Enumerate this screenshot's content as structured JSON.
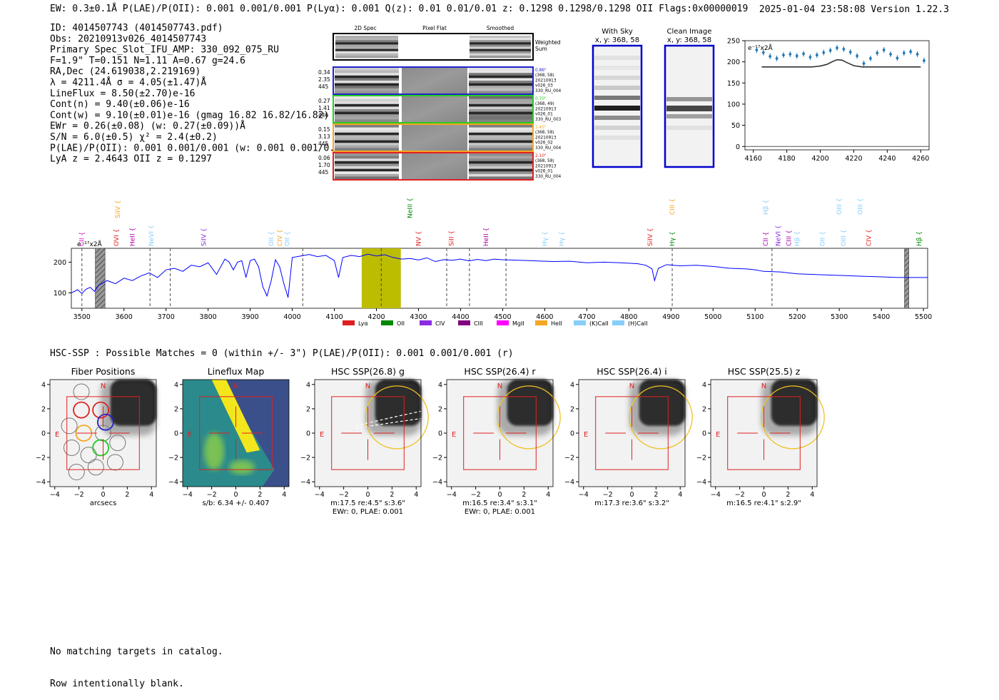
{
  "header": {
    "left_line": "EW: 0.3±0.1Å   P(LAE)/P(OII): 0.001 0.001/0.001   P(Lyα): 0.001   Q(z): 0.01 0.01/0.01   z: 0.1298 0.1298/0.1298  OII    Flags:0x00000019",
    "right_line": "2025-01-04 23:58:08  Version 1.22.3"
  },
  "info_lines": [
    "ID: 4014507743 (4014507743.pdf)",
    "Obs: 20210913v026_4014507743",
    "Primary Spec_Slot_IFU_AMP: 330_092_075_RU",
    "F=1.9\"  T=0.151  N=1.11  A=0.67  g=24.6",
    "RA,Dec (24.619038,2.219169)",
    "λ = 4211.4Å   σ = 4.05(±1.47)Å",
    "LineFlux = 8.50(±2.70)e-16",
    "Cont(n) = 9.40(±0.06)e-16",
    "Cont(w) = 9.10(±0.01)e-16 (gmag 16.82 16.82/16.82)",
    "EWr = 0.26(±0.08) (w: 0.27(±0.09))Å",
    "S/N = 6.0(±0.5)  χ² = 2.4(±0.2)",
    "P(LAE)/P(OII): 0.001 0.001/0.001 (w: 0.001 0.001/0.001)",
    "LyA z = 2.4643   OII z = 0.1297"
  ],
  "cutouts": {
    "col_labels": [
      "2D Spec",
      "Pixel Flat",
      "Smoothed"
    ],
    "weighted_sum_label": "Weighted Sum",
    "rows": [
      {
        "left": [
          "0.34",
          "2.35",
          "445"
        ],
        "right": [
          "0.86\"",
          "(368, 58)",
          "20210913",
          "v026_03",
          "330_RU_004"
        ],
        "color": "#2222cc"
      },
      {
        "left": [
          "0.27",
          "1.41",
          "446"
        ],
        "right": [
          "0.70\"",
          "(368, 49)",
          "20210913",
          "v026_01",
          "330_RU_003"
        ],
        "color": "#22cc22"
      },
      {
        "left": [
          "0.15",
          "3.13",
          "445"
        ],
        "right": [
          "1.45\"",
          "(368, 58)",
          "20210913",
          "v026_02",
          "330_RU_004"
        ],
        "color": "#f5a623"
      },
      {
        "left": [
          "0.06",
          "1.70",
          "445"
        ],
        "right": [
          "2.10\"",
          "(368, 58)",
          "20210913",
          "v026_01",
          "330_RU_004"
        ],
        "color": "#e02020"
      }
    ]
  },
  "sky_panels": [
    {
      "title": "With Sky",
      "sub": "x, y: 368, 58"
    },
    {
      "title": "Clean Image",
      "sub": "x, y: 368, 58"
    }
  ],
  "colors": {
    "spectrum": "#0000ff",
    "zoom_points": "#1f77b4",
    "model": "#333333",
    "highlight": "#bcbc00"
  },
  "chart_data": [
    {
      "type": "scatter",
      "name": "zoom",
      "unit_label": "e⁻¹⁷x2Å",
      "xlim": [
        4155,
        4265
      ],
      "ylim": [
        -8,
        250
      ],
      "xticks": [
        4160,
        4180,
        4200,
        4220,
        4240,
        4260
      ],
      "yticks": [
        0,
        50,
        100,
        150,
        200,
        250
      ],
      "x": [
        4162,
        4166,
        4170,
        4174,
        4178,
        4182,
        4186,
        4190,
        4194,
        4198,
        4202,
        4206,
        4210,
        4214,
        4218,
        4222,
        4226,
        4230,
        4234,
        4238,
        4242,
        4246,
        4250,
        4254,
        4258,
        4262
      ],
      "y": [
        228,
        222,
        213,
        208,
        216,
        218,
        214,
        219,
        211,
        216,
        222,
        227,
        233,
        230,
        223,
        214,
        196,
        208,
        221,
        228,
        218,
        209,
        221,
        224,
        218,
        203
      ],
      "model_x": [
        4165,
        4195,
        4200,
        4204,
        4207,
        4210,
        4213,
        4216,
        4220,
        4225,
        4260
      ],
      "model_y": [
        188,
        188,
        190,
        194,
        200,
        205,
        204,
        198,
        191,
        188,
        188
      ]
    },
    {
      "type": "line",
      "name": "spectrum",
      "unit_label": "e⁻¹⁷x2Å",
      "xlim": [
        3475,
        5510
      ],
      "ylim": [
        50,
        245
      ],
      "xticks": [
        3500,
        3600,
        3700,
        3800,
        3900,
        4000,
        4100,
        4200,
        4300,
        4400,
        4500,
        4600,
        4700,
        4800,
        4900,
        5000,
        5100,
        5200,
        5300,
        5400,
        5500
      ],
      "yticks": [
        100,
        200
      ],
      "x": [
        3475,
        3490,
        3500,
        3510,
        3520,
        3530,
        3540,
        3560,
        3580,
        3600,
        3620,
        3640,
        3660,
        3680,
        3700,
        3720,
        3740,
        3760,
        3780,
        3800,
        3820,
        3840,
        3850,
        3860,
        3870,
        3880,
        3890,
        3900,
        3910,
        3920,
        3930,
        3940,
        3950,
        3960,
        3970,
        3980,
        3990,
        4000,
        4020,
        4040,
        4060,
        4080,
        4100,
        4110,
        4120,
        4140,
        4160,
        4180,
        4200,
        4220,
        4240,
        4260,
        4280,
        4300,
        4320,
        4340,
        4360,
        4380,
        4400,
        4420,
        4440,
        4460,
        4480,
        4500,
        4540,
        4580,
        4620,
        4660,
        4700,
        4740,
        4780,
        4820,
        4840,
        4855,
        4861,
        4870,
        4890,
        4920,
        4960,
        5000,
        5040,
        5080,
        5100,
        5120,
        5160,
        5200,
        5240,
        5280,
        5320,
        5360,
        5400,
        5440,
        5480,
        5510
      ],
      "y": [
        100,
        110,
        98,
        112,
        118,
        105,
        125,
        140,
        130,
        148,
        140,
        155,
        165,
        150,
        175,
        180,
        170,
        190,
        185,
        198,
        160,
        210,
        200,
        175,
        200,
        205,
        150,
        205,
        210,
        185,
        120,
        90,
        140,
        208,
        185,
        130,
        85,
        215,
        220,
        225,
        218,
        222,
        205,
        150,
        215,
        222,
        218,
        226,
        220,
        224,
        215,
        210,
        212,
        207,
        214,
        202,
        208,
        206,
        210,
        204,
        209,
        205,
        210,
        208,
        206,
        204,
        202,
        203,
        198,
        200,
        198,
        195,
        190,
        178,
        140,
        180,
        192,
        188,
        190,
        186,
        180,
        178,
        175,
        170,
        168,
        162,
        160,
        158,
        156,
        154,
        152,
        150,
        150,
        150
      ],
      "highlight": [
        4165,
        4258
      ],
      "dashed_lines": [
        3500,
        3662,
        3710,
        4025,
        4367,
        4421,
        4508,
        4903,
        5140
      ],
      "hatched": [
        [
          3532,
          3555
        ],
        [
          5455,
          5465
        ]
      ],
      "line_labels": [
        {
          "x": 3500,
          "name": "CII",
          "color": "#dd00dd",
          "row": 2
        },
        {
          "x": 3585,
          "name": "SiIV",
          "color": "#f5a623",
          "row": 0
        },
        {
          "x": 3582,
          "name": "OVI",
          "color": "#e02020",
          "row": 2
        },
        {
          "x": 3620,
          "name": "HeII",
          "color": "#aa00aa",
          "row": 2
        },
        {
          "x": 3665,
          "name": "NeVI",
          "color": "#87cefa",
          "row": 2
        },
        {
          "x": 3790,
          "name": "SiIV",
          "color": "#8a2be2",
          "row": 2
        },
        {
          "x": 3950,
          "name": "OII",
          "color": "#87cefa",
          "row": 2
        },
        {
          "x": 3970,
          "name": "CIV",
          "color": "#f5a623",
          "row": 2
        },
        {
          "x": 3988,
          "name": "OII",
          "color": "#87cefa",
          "row": 2
        },
        {
          "x": 4280,
          "name": "NeIII",
          "color": "#008800",
          "row": 0
        },
        {
          "x": 4300,
          "name": "NV",
          "color": "#e02020",
          "row": 2
        },
        {
          "x": 4378,
          "name": "SiII",
          "color": "#e02020",
          "row": 2
        },
        {
          "x": 4460,
          "name": "HeII",
          "color": "#aa00aa",
          "row": 2
        },
        {
          "x": 4600,
          "name": "Hγ",
          "color": "#87cefa",
          "row": 2
        },
        {
          "x": 4640,
          "name": "Hγ",
          "color": "#87cefa",
          "row": 2
        },
        {
          "x": 4850,
          "name": "SiIV",
          "color": "#e02020",
          "row": 2
        },
        {
          "x": 4903,
          "name": "CIII",
          "color": "#f5a623",
          "row": 1
        },
        {
          "x": 4903,
          "name": "Hγ",
          "color": "#008800",
          "row": 2
        },
        {
          "x": 5125,
          "name": "Hβ",
          "color": "#87cefa",
          "row": 1
        },
        {
          "x": 5125,
          "name": "CII",
          "color": "#aa00aa",
          "row": 2
        },
        {
          "x": 5155,
          "name": "NeVI",
          "color": "#8a2be2",
          "row": 2
        },
        {
          "x": 5180,
          "name": "CIII",
          "color": "#aa00aa",
          "row": 2
        },
        {
          "x": 5200,
          "name": "Hβ",
          "color": "#87cefa",
          "row": 2
        },
        {
          "x": 5260,
          "name": "OII",
          "color": "#87cefa",
          "row": 2
        },
        {
          "x": 5300,
          "name": "OIII",
          "color": "#87cefa",
          "row": 1
        },
        {
          "x": 5310,
          "name": "OIII",
          "color": "#87cefa",
          "row": 2
        },
        {
          "x": 5350,
          "name": "OIII",
          "color": "#87cefa",
          "row": 1
        },
        {
          "x": 5370,
          "name": "CIV",
          "color": "#e02020",
          "row": 2
        },
        {
          "x": 5490,
          "name": "Hβ",
          "color": "#008800",
          "row": 2
        }
      ],
      "legend": [
        {
          "name": "Lyα",
          "color": "#e02020"
        },
        {
          "name": "OII",
          "color": "#008800"
        },
        {
          "name": "CIV",
          "color": "#8a2be2"
        },
        {
          "name": "CIII",
          "color": "#800080"
        },
        {
          "name": "MgII",
          "color": "#ff00ff"
        },
        {
          "name": "HeII",
          "color": "#f5a623"
        },
        {
          "name": "(K)CaII",
          "color": "#87cefa"
        },
        {
          "name": "(H)CaII",
          "color": "#87cefa"
        }
      ]
    }
  ],
  "hsc": {
    "summary": "HSC-SSP : Possible Matches = 0 (within +/- 3\")  P(LAE)/P(OII): 0.001 0.001/0.001 (r)",
    "ticks": [
      -4,
      -2,
      0,
      2,
      4
    ],
    "panels": [
      {
        "title": "Fiber Positions",
        "cap1": "arcsecs",
        "cap2": ""
      },
      {
        "title": "Lineflux Map",
        "cap1": "s/b: 6.34 +/- 0.407",
        "cap2": ""
      },
      {
        "title": "HSC SSP(26.8) g",
        "cap1": "m:17.5  re:4.5\"  s:3.6\"",
        "cap2": "EWr: 0, PLAE: 0.001"
      },
      {
        "title": "HSC SSP(26.4) r",
        "cap1": "m:16.5  re:3.4\"  s:3.1\"",
        "cap2": "EWr: 0, PLAE: 0.001"
      },
      {
        "title": "HSC SSP(26.4) i",
        "cap1": "m:17.3  re:3.6\"  s:3.2\"",
        "cap2": ""
      },
      {
        "title": "HSC SSP(25.5) z",
        "cap1": "m:16.5  re:4.1\"  s:2.9\"",
        "cap2": ""
      }
    ],
    "n_label": "N",
    "e_label": "E"
  },
  "footer": {
    "lines": [
      "No matching targets in catalog.",
      "Row intentionally blank."
    ]
  }
}
